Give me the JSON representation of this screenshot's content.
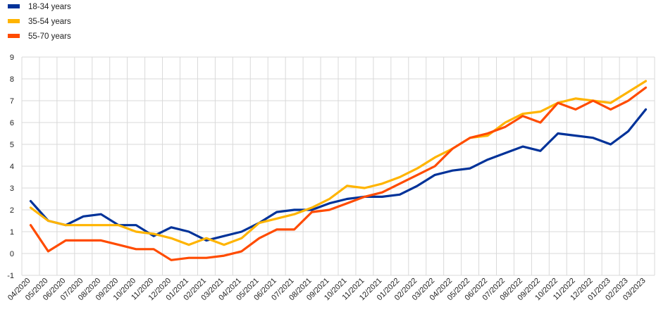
{
  "chart_data": {
    "type": "line",
    "title": "",
    "xlabel": "",
    "ylabel": "",
    "ylim": [
      -1,
      9
    ],
    "yticks": [
      "-1",
      "0",
      "1",
      "2",
      "3",
      "4",
      "5",
      "6",
      "7",
      "8",
      "9"
    ],
    "grid": true,
    "legend_position": "top-left",
    "categories": [
      "04/2020",
      "05/2020",
      "06/2020",
      "07/2020",
      "08/2020",
      "09/2020",
      "10/2020",
      "11/2020",
      "12/2020",
      "01/2021",
      "02/2021",
      "03/2021",
      "04/2021",
      "05/2021",
      "06/2021",
      "07/2021",
      "08/2021",
      "09/2021",
      "10/2021",
      "11/2021",
      "12/2021",
      "01/2022",
      "02/2022",
      "03/2022",
      "04/2022",
      "05/2022",
      "06/2022",
      "07/2022",
      "08/2022",
      "09/2022",
      "10/2022",
      "11/2022",
      "12/2022",
      "01/2023",
      "02/2023",
      "03/2023"
    ],
    "series": [
      {
        "name": "18-34 years",
        "color": "#003299",
        "values": [
          2.4,
          1.5,
          1.3,
          1.7,
          1.8,
          1.3,
          1.3,
          0.8,
          1.2,
          1.0,
          0.6,
          0.8,
          1.0,
          1.4,
          1.9,
          2.0,
          2.0,
          2.3,
          2.5,
          2.6,
          2.6,
          2.7,
          3.1,
          3.6,
          3.8,
          3.9,
          4.3,
          4.6,
          4.9,
          4.7,
          5.5,
          5.4,
          5.3,
          5.0,
          5.6,
          6.6
        ]
      },
      {
        "name": "35-54 years",
        "color": "#FFB400",
        "values": [
          2.1,
          1.5,
          1.3,
          1.3,
          1.3,
          1.3,
          1.0,
          0.9,
          0.7,
          0.4,
          0.7,
          0.4,
          0.7,
          1.4,
          1.6,
          1.8,
          2.1,
          2.5,
          3.1,
          3.0,
          3.2,
          3.5,
          3.9,
          4.4,
          4.8,
          5.3,
          5.4,
          6.0,
          6.4,
          6.5,
          6.9,
          7.1,
          7.0,
          6.9,
          7.4,
          7.9
        ]
      },
      {
        "name": "55-70 years",
        "color": "#FF4B00",
        "values": [
          1.3,
          0.1,
          0.6,
          0.6,
          0.6,
          0.4,
          0.2,
          0.2,
          -0.3,
          -0.2,
          -0.2,
          -0.1,
          0.1,
          0.7,
          1.1,
          1.1,
          1.9,
          2.0,
          2.3,
          2.6,
          2.8,
          3.2,
          3.6,
          4.0,
          4.8,
          5.3,
          5.5,
          5.8,
          6.3,
          6.0,
          6.9,
          6.6,
          7.0,
          6.6,
          7.0,
          7.6
        ]
      }
    ]
  }
}
